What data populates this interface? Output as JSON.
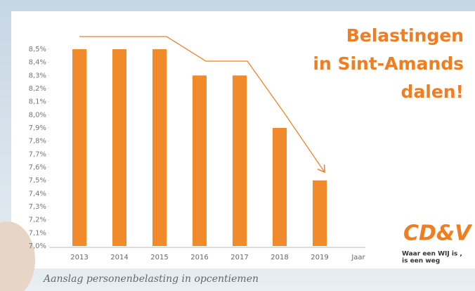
{
  "chart_data": {
    "type": "bar",
    "title_lines": [
      "Belastingen",
      "in Sint-Amands",
      "dalen!"
    ],
    "caption": "Aanslag personenbelasting in opcentiemen",
    "x_label": "Jaar",
    "categories": [
      "2013",
      "2014",
      "2015",
      "2016",
      "2017",
      "2018",
      "2019"
    ],
    "values": [
      8.5,
      8.5,
      8.5,
      8.3,
      8.3,
      7.9,
      7.5
    ],
    "color": "#f08a2a",
    "ylim": [
      7.0,
      8.5
    ],
    "yticks": [
      {
        "value": 7.0,
        "label": "7,0%"
      },
      {
        "value": 7.1,
        "label": "7,1%"
      },
      {
        "value": 7.2,
        "label": "7,2%"
      },
      {
        "value": 7.3,
        "label": "7,3%"
      },
      {
        "value": 7.4,
        "label": "7,4%"
      },
      {
        "value": 7.5,
        "label": "7,5%"
      },
      {
        "value": 7.6,
        "label": "7,6%"
      },
      {
        "value": 7.7,
        "label": "7,7%"
      },
      {
        "value": 7.8,
        "label": "7,8%"
      },
      {
        "value": 7.9,
        "label": "7,9%"
      },
      {
        "value": 8.0,
        "label": "8,0%"
      },
      {
        "value": 8.1,
        "label": "8,1%"
      },
      {
        "value": 8.2,
        "label": "8,2%"
      },
      {
        "value": 8.3,
        "label": "8,3%"
      },
      {
        "value": 8.4,
        "label": "8,4%"
      },
      {
        "value": 8.5,
        "label": "8,5%"
      }
    ],
    "grid": false
  },
  "logo": {
    "name": "CD&V",
    "tagline": [
      "Waar een WIJ is ,",
      "is een weg"
    ]
  }
}
